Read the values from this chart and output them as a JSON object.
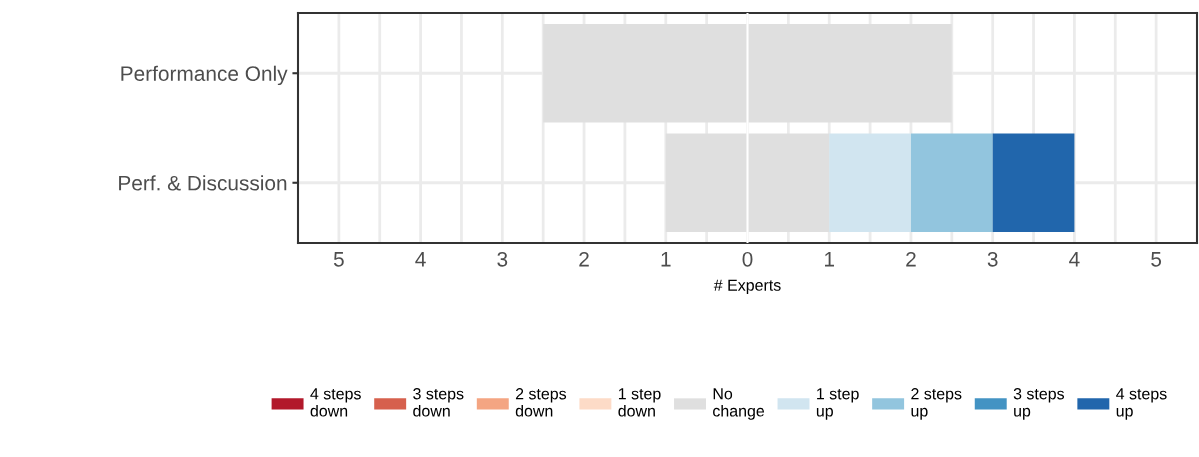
{
  "chart_data": {
    "type": "bar",
    "orientation": "horizontal",
    "xlabel": "# Experts",
    "categories": [
      "Performance Only",
      "Perf. & Discussion"
    ],
    "series": [
      {
        "name": "4 steps\ndown",
        "color": "#b2182b",
        "values": [
          null,
          null
        ]
      },
      {
        "name": "3 steps\ndown",
        "color": "#d6604d",
        "values": [
          null,
          null
        ]
      },
      {
        "name": "2 steps\ndown",
        "color": "#f4a582",
        "values": [
          null,
          null
        ]
      },
      {
        "name": "1 step\ndown",
        "color": "#fddbc7",
        "values": [
          null,
          null
        ]
      },
      {
        "name": "No\nchange",
        "color": "#dfdfdf",
        "base": [
          -2.5,
          -1
        ],
        "values": [
          5,
          2
        ]
      },
      {
        "name": "1 step\nup",
        "color": "#d1e5f0",
        "base": [
          null,
          1
        ],
        "values": [
          null,
          1
        ]
      },
      {
        "name": "2 steps\nup",
        "color": "#92c5de",
        "base": [
          null,
          2
        ],
        "values": [
          null,
          1
        ]
      },
      {
        "name": "3 steps\nup",
        "color": "#4393c3",
        "values": [
          null,
          null
        ]
      },
      {
        "name": "4 steps\nup",
        "color": "#2166ac",
        "base": [
          null,
          3
        ],
        "values": [
          null,
          1
        ]
      }
    ],
    "xlim": [
      -5.5,
      5.5
    ],
    "xticks": [
      {
        "value": -5,
        "label": "5"
      },
      {
        "value": -4,
        "label": "4"
      },
      {
        "value": -3,
        "label": "3"
      },
      {
        "value": -2,
        "label": "2"
      },
      {
        "value": -1,
        "label": "1"
      },
      0,
      1,
      2,
      3,
      4,
      5
    ],
    "ref_lines": [
      {
        "axis": "x",
        "value": 0,
        "label": null,
        "color": "#ffffff"
      }
    ],
    "grid": true,
    "legend": "bottom"
  }
}
